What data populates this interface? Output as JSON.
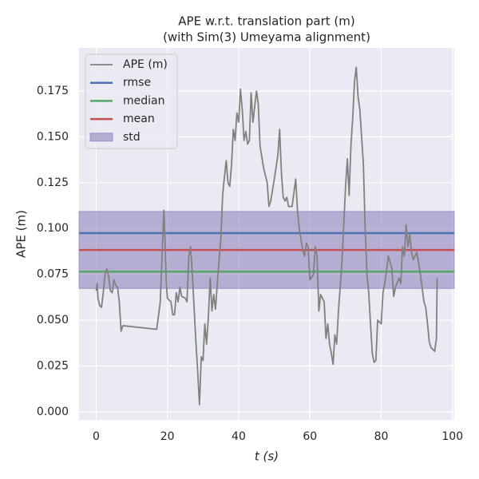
{
  "chart_data": {
    "type": "line",
    "title": "APE w.r.t. translation part (m)",
    "subtitle": "(with Sim(3) Umeyama alignment)",
    "xlabel": "t (s)",
    "ylabel": "APE (m)",
    "xlim": [
      -4.8,
      100.5
    ],
    "ylim": [
      -0.0044,
      0.1985
    ],
    "xticks": [
      0,
      20,
      40,
      60,
      80,
      100
    ],
    "yticks": [
      {
        "value": 0,
        "label": "0.000"
      },
      {
        "value": 0.025,
        "label": "0.025"
      },
      {
        "value": 0.05,
        "label": "0.050"
      },
      {
        "value": 0.075,
        "label": "0.075"
      },
      {
        "value": 0.1,
        "label": "0.100"
      },
      {
        "value": 0.125,
        "label": "0.125"
      },
      {
        "value": 0.15,
        "label": "0.150"
      },
      {
        "value": 0.175,
        "label": "0.175"
      }
    ],
    "grid": true,
    "legend": "upper left",
    "x": [
      0,
      0.3,
      0.5,
      1,
      1.5,
      2,
      2.5,
      3,
      3.5,
      4,
      4.5,
      5,
      5.5,
      6,
      6.5,
      7,
      7.5,
      17,
      18,
      18.5,
      19,
      19.3,
      19.7,
      20,
      21,
      21.5,
      22,
      22.5,
      23,
      23.5,
      24,
      25,
      25.5,
      26,
      26.5,
      27,
      28,
      28.5,
      29,
      29.5,
      30,
      30.5,
      31,
      31.5,
      32,
      32.5,
      33,
      33.5,
      34,
      35,
      35.5,
      36,
      36.5,
      37,
      37.5,
      38,
      38.5,
      39,
      39.5,
      40,
      40.5,
      41,
      41.5,
      42,
      42.5,
      43,
      43.5,
      44,
      45,
      45.5,
      46,
      47,
      48,
      48.5,
      49,
      50,
      51,
      51.5,
      52,
      52.5,
      53,
      53.5,
      54,
      55,
      56,
      56.5,
      57,
      58,
      58.5,
      59,
      59.5,
      60,
      61,
      61.5,
      62,
      62.5,
      63,
      64,
      64.5,
      65,
      65.5,
      66,
      66.5,
      67,
      67.5,
      68,
      69,
      70,
      70.5,
      71,
      71.5,
      72,
      72.5,
      73,
      73.5,
      74,
      75,
      75.5,
      76,
      76.5,
      77,
      77.5,
      78,
      78.5,
      79,
      80,
      80.5,
      81,
      82,
      83,
      83.5,
      84,
      85,
      85.5,
      86,
      86.5,
      87,
      87.5,
      88,
      88.5,
      89,
      90,
      91,
      92,
      92.5,
      93,
      93.5,
      94,
      94.5,
      95,
      95.5,
      95.7
    ],
    "series": [
      {
        "name": "APE (m)",
        "color": "#808080",
        "values": [
          0.066,
          0.07,
          0.062,
          0.058,
          0.057,
          0.065,
          0.075,
          0.078,
          0.074,
          0.066,
          0.065,
          0.072,
          0.069,
          0.068,
          0.06,
          0.044,
          0.047,
          0.045,
          0.06,
          0.085,
          0.11,
          0.095,
          0.07,
          0.062,
          0.06,
          0.053,
          0.053,
          0.065,
          0.06,
          0.068,
          0.063,
          0.062,
          0.06,
          0.085,
          0.09,
          0.075,
          0.038,
          0.022,
          0.004,
          0.03,
          0.028,
          0.048,
          0.037,
          0.052,
          0.073,
          0.055,
          0.064,
          0.056,
          0.07,
          0.095,
          0.118,
          0.128,
          0.137,
          0.125,
          0.123,
          0.135,
          0.154,
          0.148,
          0.163,
          0.158,
          0.176,
          0.165,
          0.148,
          0.153,
          0.146,
          0.148,
          0.174,
          0.158,
          0.175,
          0.168,
          0.145,
          0.133,
          0.125,
          0.112,
          0.115,
          0.127,
          0.14,
          0.154,
          0.13,
          0.117,
          0.115,
          0.117,
          0.112,
          0.112,
          0.127,
          0.11,
          0.1,
          0.088,
          0.085,
          0.092,
          0.09,
          0.072,
          0.075,
          0.09,
          0.085,
          0.055,
          0.064,
          0.06,
          0.04,
          0.048,
          0.037,
          0.032,
          0.026,
          0.042,
          0.037,
          0.055,
          0.082,
          0.123,
          0.138,
          0.118,
          0.145,
          0.16,
          0.18,
          0.188,
          0.172,
          0.165,
          0.135,
          0.1,
          0.075,
          0.065,
          0.048,
          0.032,
          0.027,
          0.028,
          0.05,
          0.048,
          0.065,
          0.07,
          0.085,
          0.078,
          0.063,
          0.068,
          0.073,
          0.07,
          0.09,
          0.085,
          0.102,
          0.09,
          0.097,
          0.087,
          0.083,
          0.087,
          0.075,
          0.06,
          0.057,
          0.048,
          0.038,
          0.035,
          0.034,
          0.033,
          0.04,
          0.073
        ]
      }
    ],
    "stats": [
      {
        "name": "rmse",
        "color": "#4c72b0",
        "value": 0.0975
      },
      {
        "name": "median",
        "color": "#55a868",
        "value": 0.0765
      },
      {
        "name": "mean",
        "color": "#c44e52",
        "value": 0.0883
      }
    ],
    "std": {
      "name": "std",
      "color": "#8172b2",
      "value": 0.021
    }
  }
}
